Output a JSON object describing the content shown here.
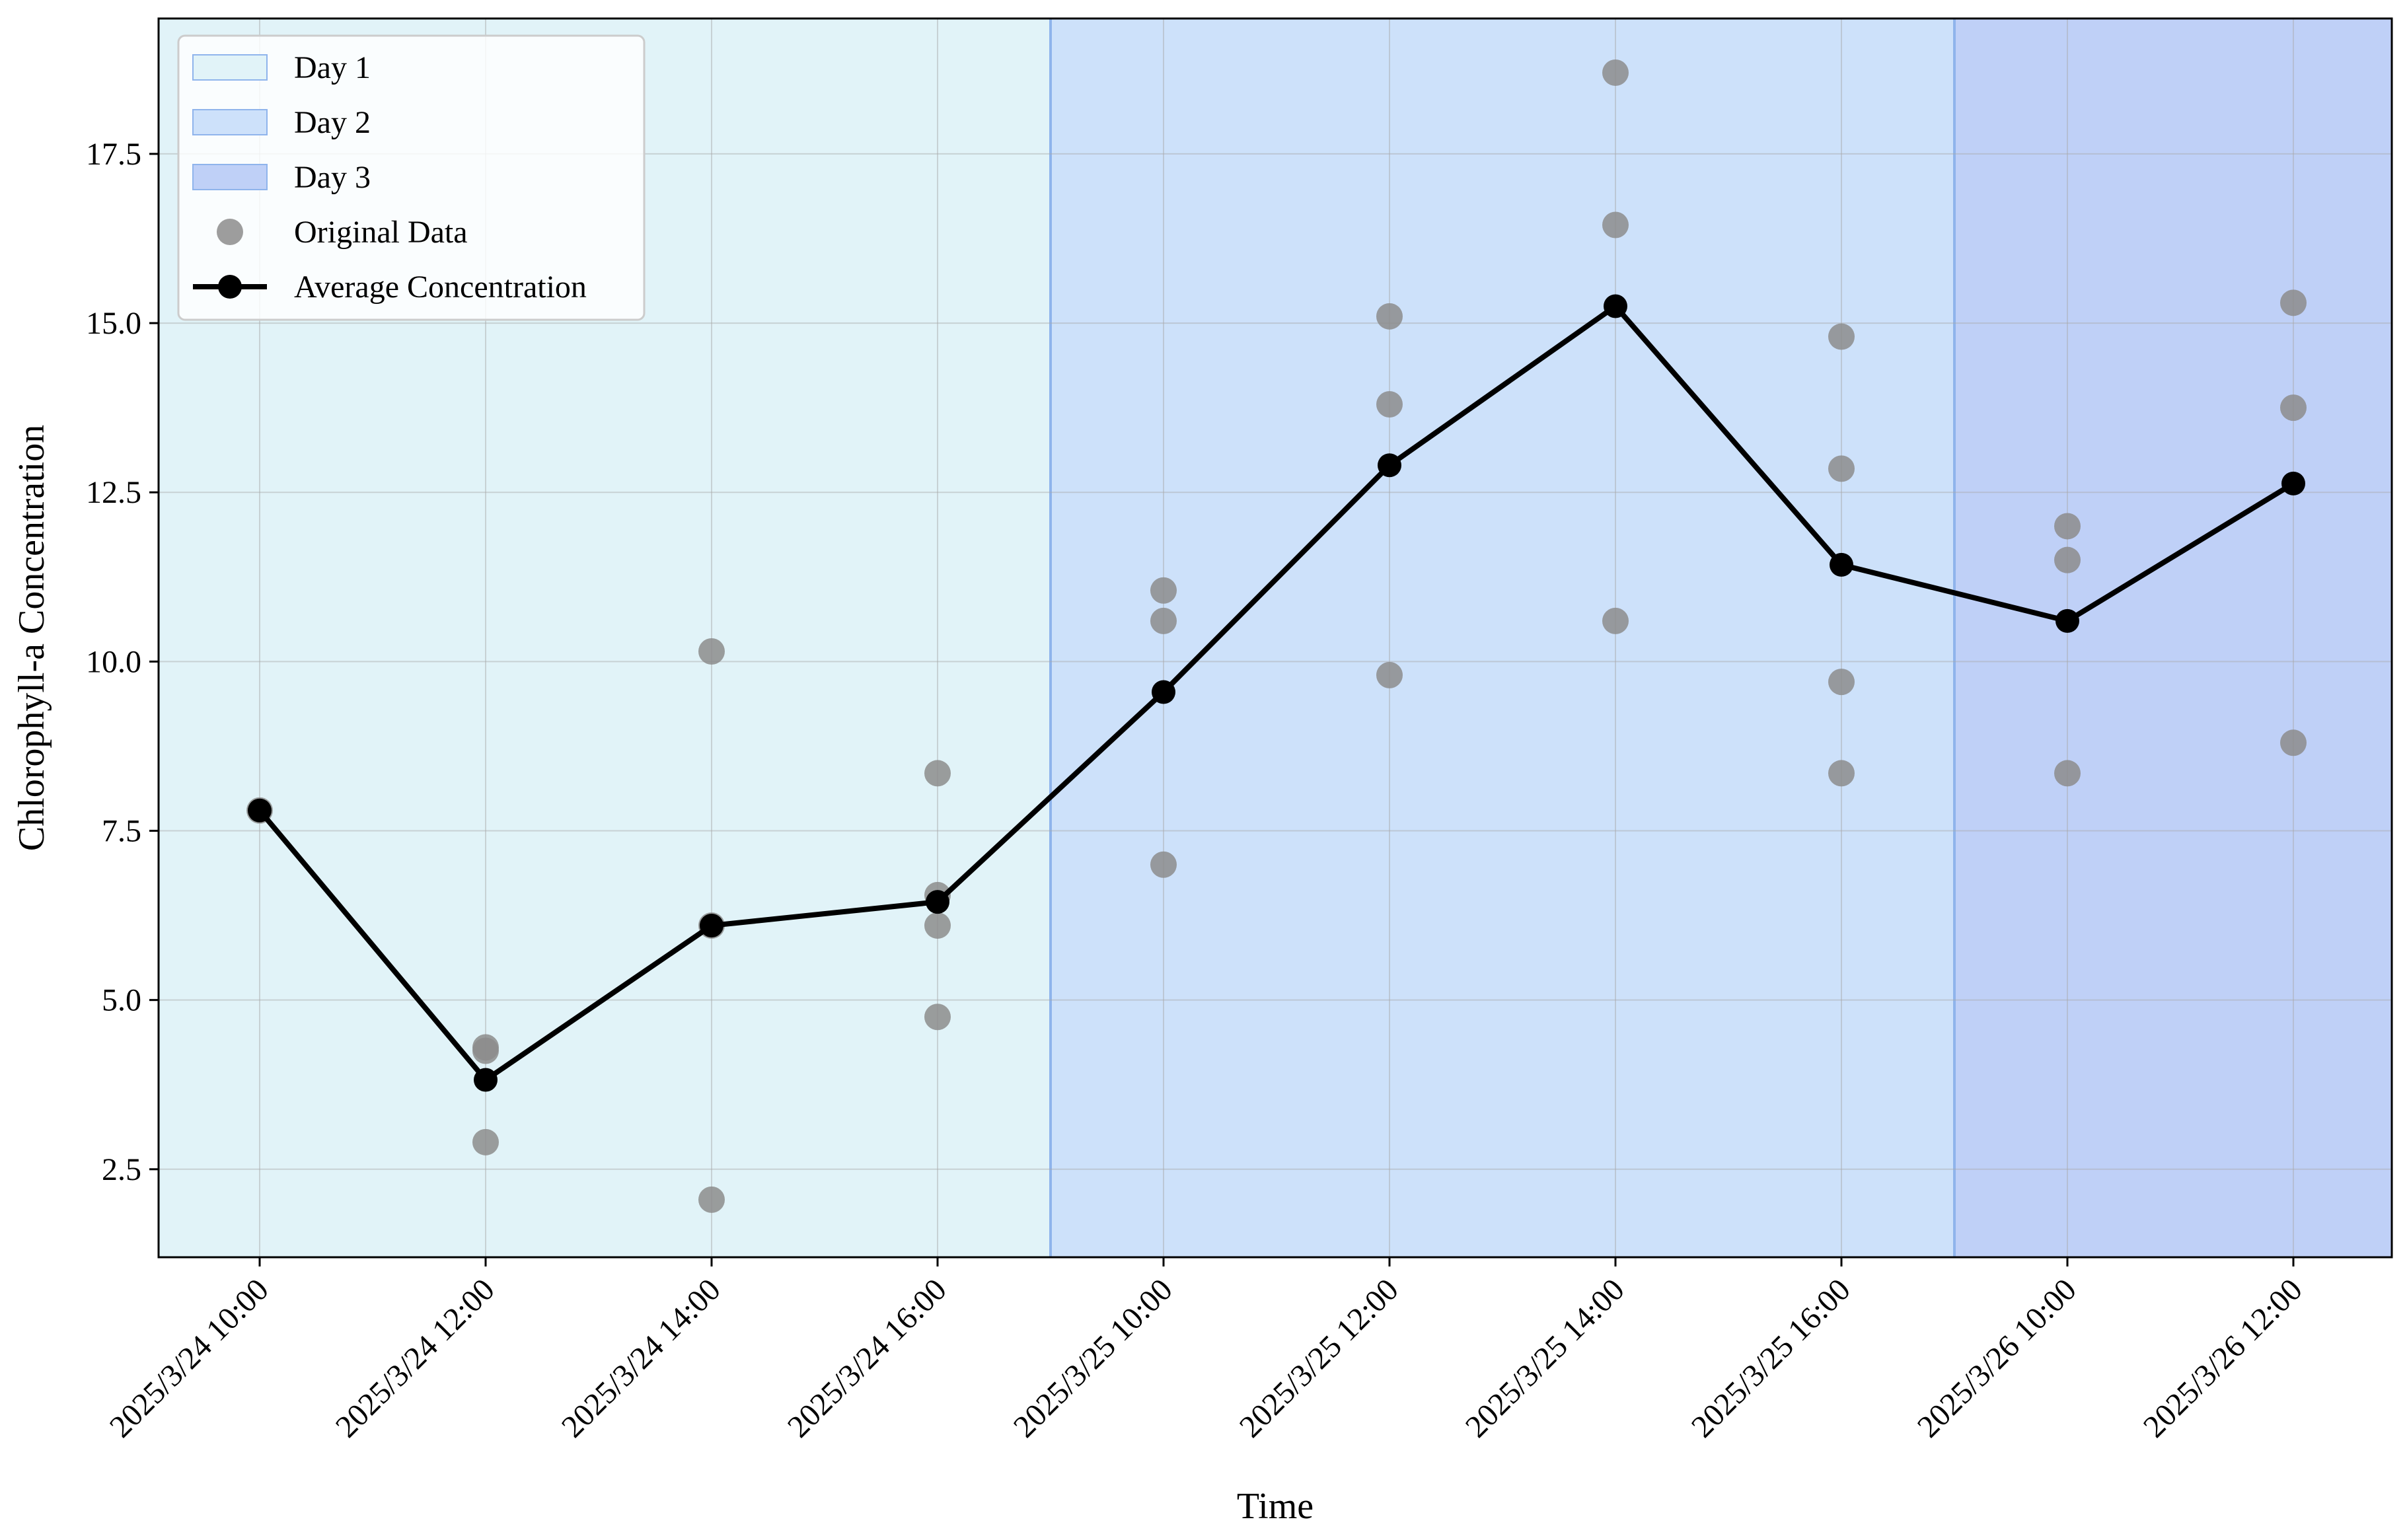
{
  "chart_data": {
    "type": "line",
    "title": "",
    "xlabel": "Time",
    "ylabel": "Chlorophyll-a Concentration",
    "ylim": [
      1.2,
      19.5
    ],
    "yticks": [
      "2.5",
      "5.0",
      "7.5",
      "10.0",
      "12.5",
      "15.0",
      "17.5"
    ],
    "categories": [
      "2025/3/24 10:00",
      "2025/3/24 12:00",
      "2025/3/24 14:00",
      "2025/3/24 16:00",
      "2025/3/25 10:00",
      "2025/3/25 12:00",
      "2025/3/25 14:00",
      "2025/3/25 16:00",
      "2025/3/26 10:00",
      "2025/3/26 12:00"
    ],
    "grid": true,
    "legend_position": "top-left",
    "day_spans": [
      {
        "name": "Day 1",
        "start": "2025/3/24 10:00",
        "end": "2025/3/24 16:00",
        "color": "#e1f3f8"
      },
      {
        "name": "Day 2",
        "start": "2025/3/25 10:00",
        "end": "2025/3/25 16:00",
        "color": "#cde1fa"
      },
      {
        "name": "Day 3",
        "start": "2025/3/26 10:00",
        "end": "2025/3/26 12:00",
        "color": "#bfd0f7"
      }
    ],
    "span_border_color": "#8fb4ec",
    "series": [
      {
        "name": "Original Data",
        "kind": "scatter",
        "color": "#8c8c8c",
        "points": [
          [
            "2025/3/24 10:00",
            7.8
          ],
          [
            "2025/3/24 12:00",
            4.3
          ],
          [
            "2025/3/24 12:00",
            4.25
          ],
          [
            "2025/3/24 12:00",
            2.9
          ],
          [
            "2025/3/24 14:00",
            10.15
          ],
          [
            "2025/3/24 14:00",
            6.1
          ],
          [
            "2025/3/24 14:00",
            2.05
          ],
          [
            "2025/3/24 16:00",
            8.35
          ],
          [
            "2025/3/24 16:00",
            6.55
          ],
          [
            "2025/3/24 16:00",
            6.1
          ],
          [
            "2025/3/24 16:00",
            4.75
          ],
          [
            "2025/3/25 10:00",
            11.05
          ],
          [
            "2025/3/25 10:00",
            10.6
          ],
          [
            "2025/3/25 10:00",
            7.0
          ],
          [
            "2025/3/25 12:00",
            15.1
          ],
          [
            "2025/3/25 12:00",
            13.8
          ],
          [
            "2025/3/25 12:00",
            9.8
          ],
          [
            "2025/3/25 14:00",
            18.7
          ],
          [
            "2025/3/25 14:00",
            16.45
          ],
          [
            "2025/3/25 14:00",
            10.6
          ],
          [
            "2025/3/25 16:00",
            14.8
          ],
          [
            "2025/3/25 16:00",
            12.85
          ],
          [
            "2025/3/25 16:00",
            9.7
          ],
          [
            "2025/3/25 16:00",
            8.35
          ],
          [
            "2025/3/26 10:00",
            12.0
          ],
          [
            "2025/3/26 10:00",
            11.5
          ],
          [
            "2025/3/26 10:00",
            8.35
          ],
          [
            "2025/3/26 12:00",
            15.3
          ],
          [
            "2025/3/26 12:00",
            13.75
          ],
          [
            "2025/3/26 12:00",
            8.8
          ]
        ]
      },
      {
        "name": "Average Concentration",
        "kind": "line",
        "color": "#000000",
        "values": [
          7.8,
          3.82,
          6.1,
          6.45,
          9.55,
          12.9,
          15.25,
          11.43,
          10.6,
          12.63
        ]
      }
    ]
  }
}
